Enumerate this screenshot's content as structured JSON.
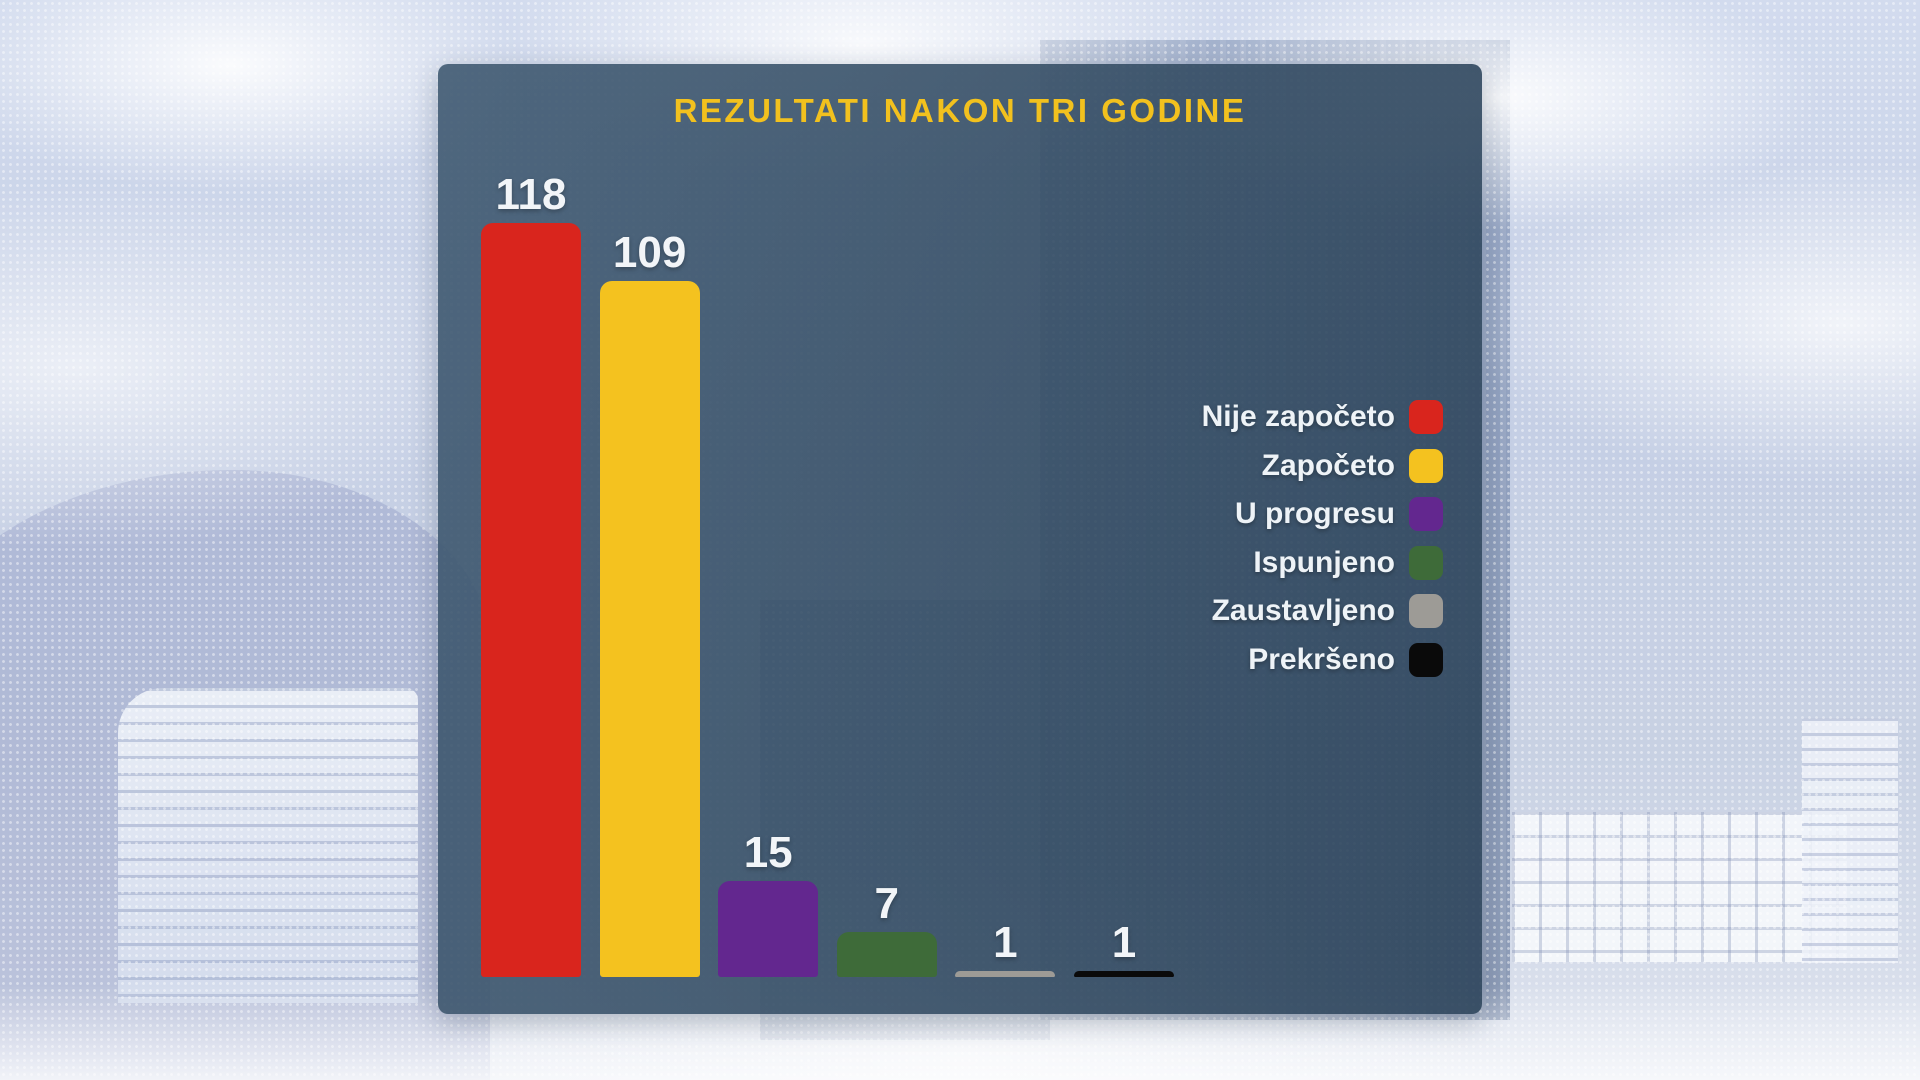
{
  "chart_data": {
    "type": "bar",
    "title": "REZULTATI NAKON TRI GODINE",
    "categories": [
      "Nije započeto",
      "Započeto",
      "U progresu",
      "Ispunjeno",
      "Zaustavljeno",
      "Prekršeno"
    ],
    "values": [
      118,
      109,
      15,
      7,
      1,
      1
    ],
    "bar_colors": [
      "#d9251d",
      "#f4c21f",
      "#63278f",
      "#3e6b39",
      "#9d9b96",
      "#0a0a0a"
    ],
    "value_labels_shown": true,
    "grid": false,
    "legend_position": "right-middle",
    "title_color": "#f2c11e",
    "panel_color": "rgba(54,78,101,0.92)"
  }
}
